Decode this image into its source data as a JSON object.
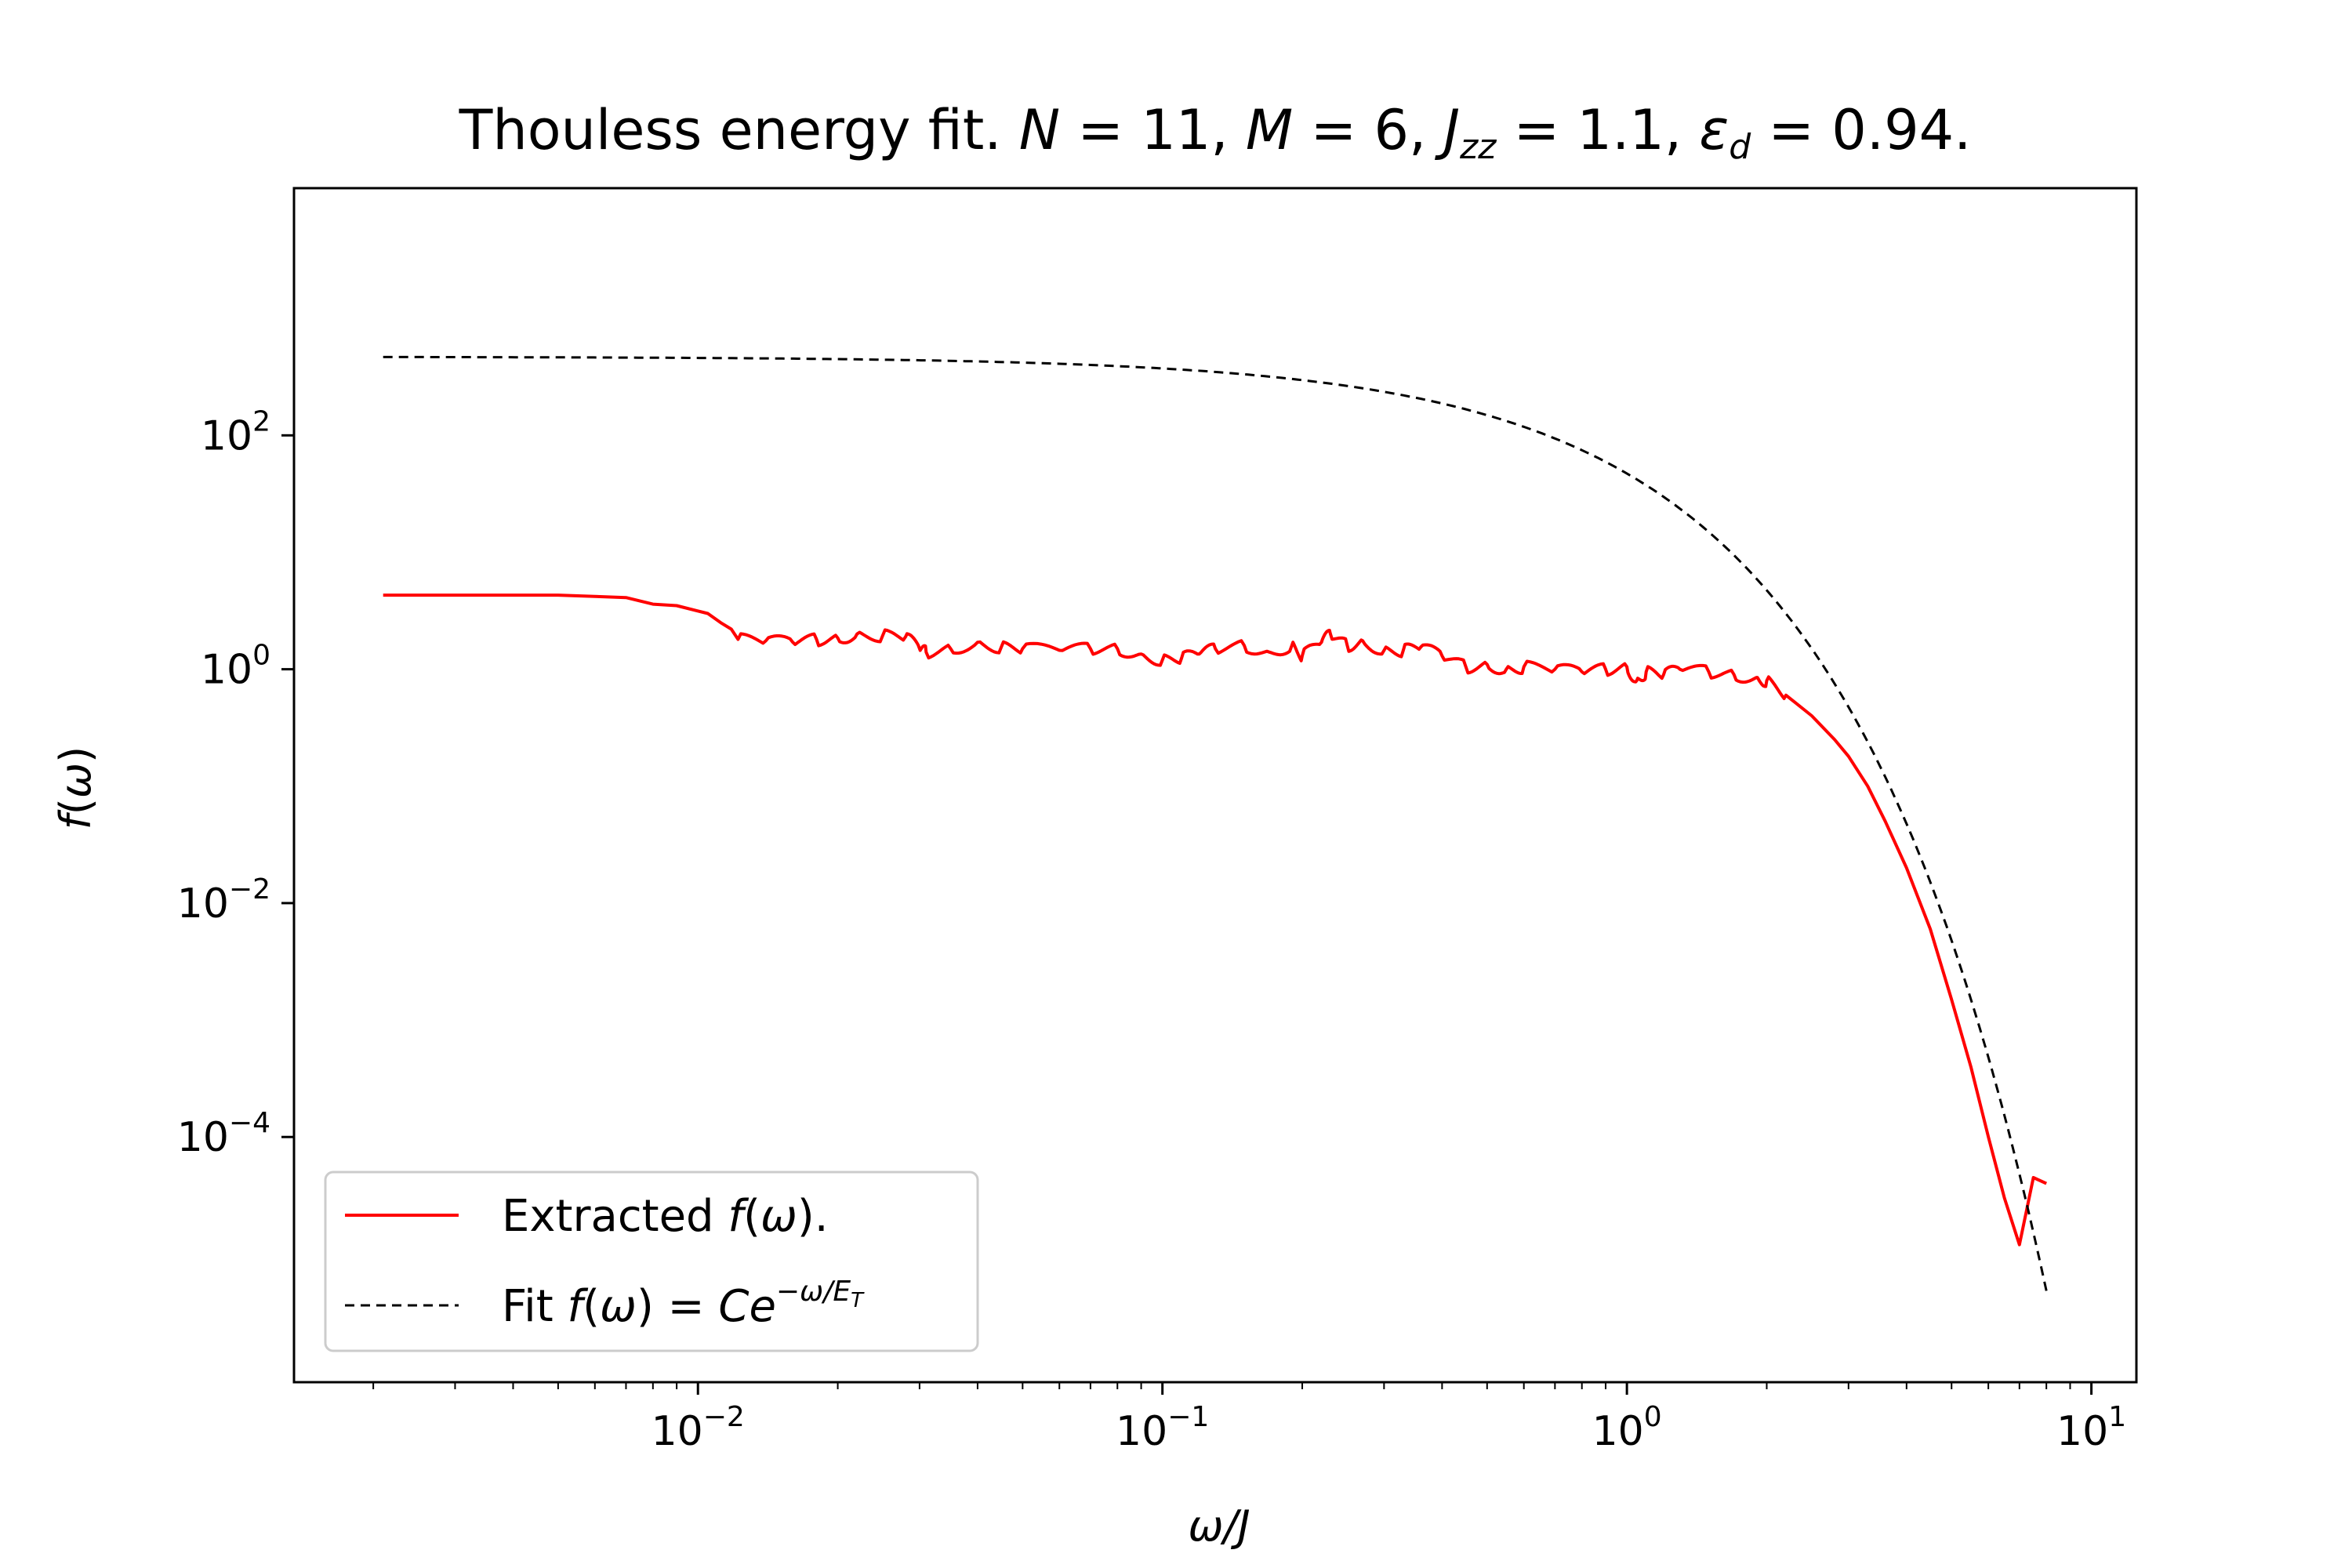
{
  "chart_data": {
    "type": "line",
    "title": {
      "prefix": "Thouless energy fit. ",
      "N_sym": "N",
      "N_eq": " = 11, ",
      "M_sym": "M",
      "M_eq": " = 6, ",
      "J_sym": "J",
      "J_sub": "zz",
      "J_eq": " = 1.1, ",
      "eps_sym": "ε",
      "eps_sub": "d",
      "eps_eq": " = 0.94."
    },
    "xlabel": {
      "sym1": "ω",
      "slash": "/",
      "sym2": "J"
    },
    "ylabel": {
      "f": "f",
      "open": "(",
      "omega": "ω",
      "close": ")"
    },
    "xscale": "log",
    "yscale": "log",
    "xlim": [
      0.00135,
      12.5
    ],
    "ylim": [
      8e-07,
      13000
    ],
    "xticks": [
      {
        "value": 0.01,
        "base": "10",
        "exp": "−2"
      },
      {
        "value": 0.1,
        "base": "10",
        "exp": "−1"
      },
      {
        "value": 1,
        "base": "10",
        "exp": "0"
      },
      {
        "value": 10,
        "base": "10",
        "exp": "1"
      }
    ],
    "yticks": [
      {
        "value": 100,
        "base": "10",
        "exp": "2"
      },
      {
        "value": 1,
        "base": "10",
        "exp": "0"
      },
      {
        "value": 0.01,
        "base": "10",
        "exp": "−2"
      },
      {
        "value": 0.0001,
        "base": "10",
        "exp": "−4"
      }
    ],
    "legend": {
      "location": "lower-left",
      "entries": [
        {
          "series": "extracted",
          "text_a": "Extracted ",
          "f": "f",
          "paren_open": "(",
          "omega": "ω",
          "paren_close": ").",
          "text_b": ""
        },
        {
          "series": "fit",
          "text_a": "Fit ",
          "f": "f",
          "paren_open": "(",
          "omega": "ω",
          "paren_close": ")",
          "eq": " = ",
          "C": "C",
          "e": "e",
          "exp_a": "−ω/E",
          "exp_sub": "T"
        }
      ]
    },
    "series": [
      {
        "name": "extracted",
        "color": "#ff0000",
        "style": "solid",
        "x": [
          0.0021,
          0.003,
          0.004,
          0.005,
          0.006,
          0.007,
          0.008,
          0.009,
          0.0105,
          0.0112,
          0.0118,
          0.0122,
          0.014,
          0.016,
          0.018,
          0.02,
          0.022,
          0.025,
          0.028,
          0.03,
          0.031,
          0.035,
          0.04,
          0.045,
          0.05,
          0.06,
          0.07,
          0.08,
          0.09,
          0.1,
          0.11,
          0.12,
          0.13,
          0.15,
          0.17,
          0.19,
          0.2,
          0.22,
          0.23,
          0.25,
          0.27,
          0.3,
          0.33,
          0.36,
          0.4,
          0.45,
          0.5,
          0.55,
          0.6,
          0.7,
          0.8,
          0.9,
          1.0,
          1.05,
          1.1,
          1.2,
          1.3,
          1.5,
          1.7,
          1.9,
          2.0,
          2.2,
          2.5,
          2.8,
          3.0,
          3.3,
          3.6,
          4.0,
          4.5,
          5.0,
          5.5,
          6.0,
          6.5,
          7.0,
          7.5,
          8.0
        ],
        "y": [
          4.3,
          4.3,
          4.3,
          4.3,
          4.2,
          4.1,
          3.6,
          3.5,
          3.0,
          2.5,
          2.2,
          1.8,
          1.75,
          1.7,
          1.8,
          1.85,
          2.0,
          1.95,
          1.9,
          1.5,
          1.4,
          1.5,
          1.7,
          1.55,
          1.5,
          1.45,
          1.5,
          1.5,
          1.35,
          1.2,
          1.25,
          1.35,
          1.5,
          1.6,
          1.4,
          1.6,
          1.3,
          1.7,
          2.0,
          1.6,
          1.75,
          1.45,
          1.45,
          1.55,
          1.3,
          1.05,
          1.1,
          1.0,
          1.05,
          1.0,
          0.95,
          1.0,
          1.05,
          0.8,
          0.95,
          0.9,
          1.0,
          0.95,
          0.9,
          0.85,
          0.8,
          0.6,
          0.4,
          0.25,
          0.18,
          0.1,
          0.05,
          0.02,
          0.006,
          0.0015,
          0.0004,
          0.0001,
          3e-05,
          1.2e-05,
          4.5e-05,
          4e-05
        ]
      },
      {
        "name": "fit",
        "color": "#000000",
        "style": "dashed",
        "C": 470,
        "E_T": 0.435,
        "x_range": [
          0.0021,
          8.0
        ]
      }
    ]
  }
}
